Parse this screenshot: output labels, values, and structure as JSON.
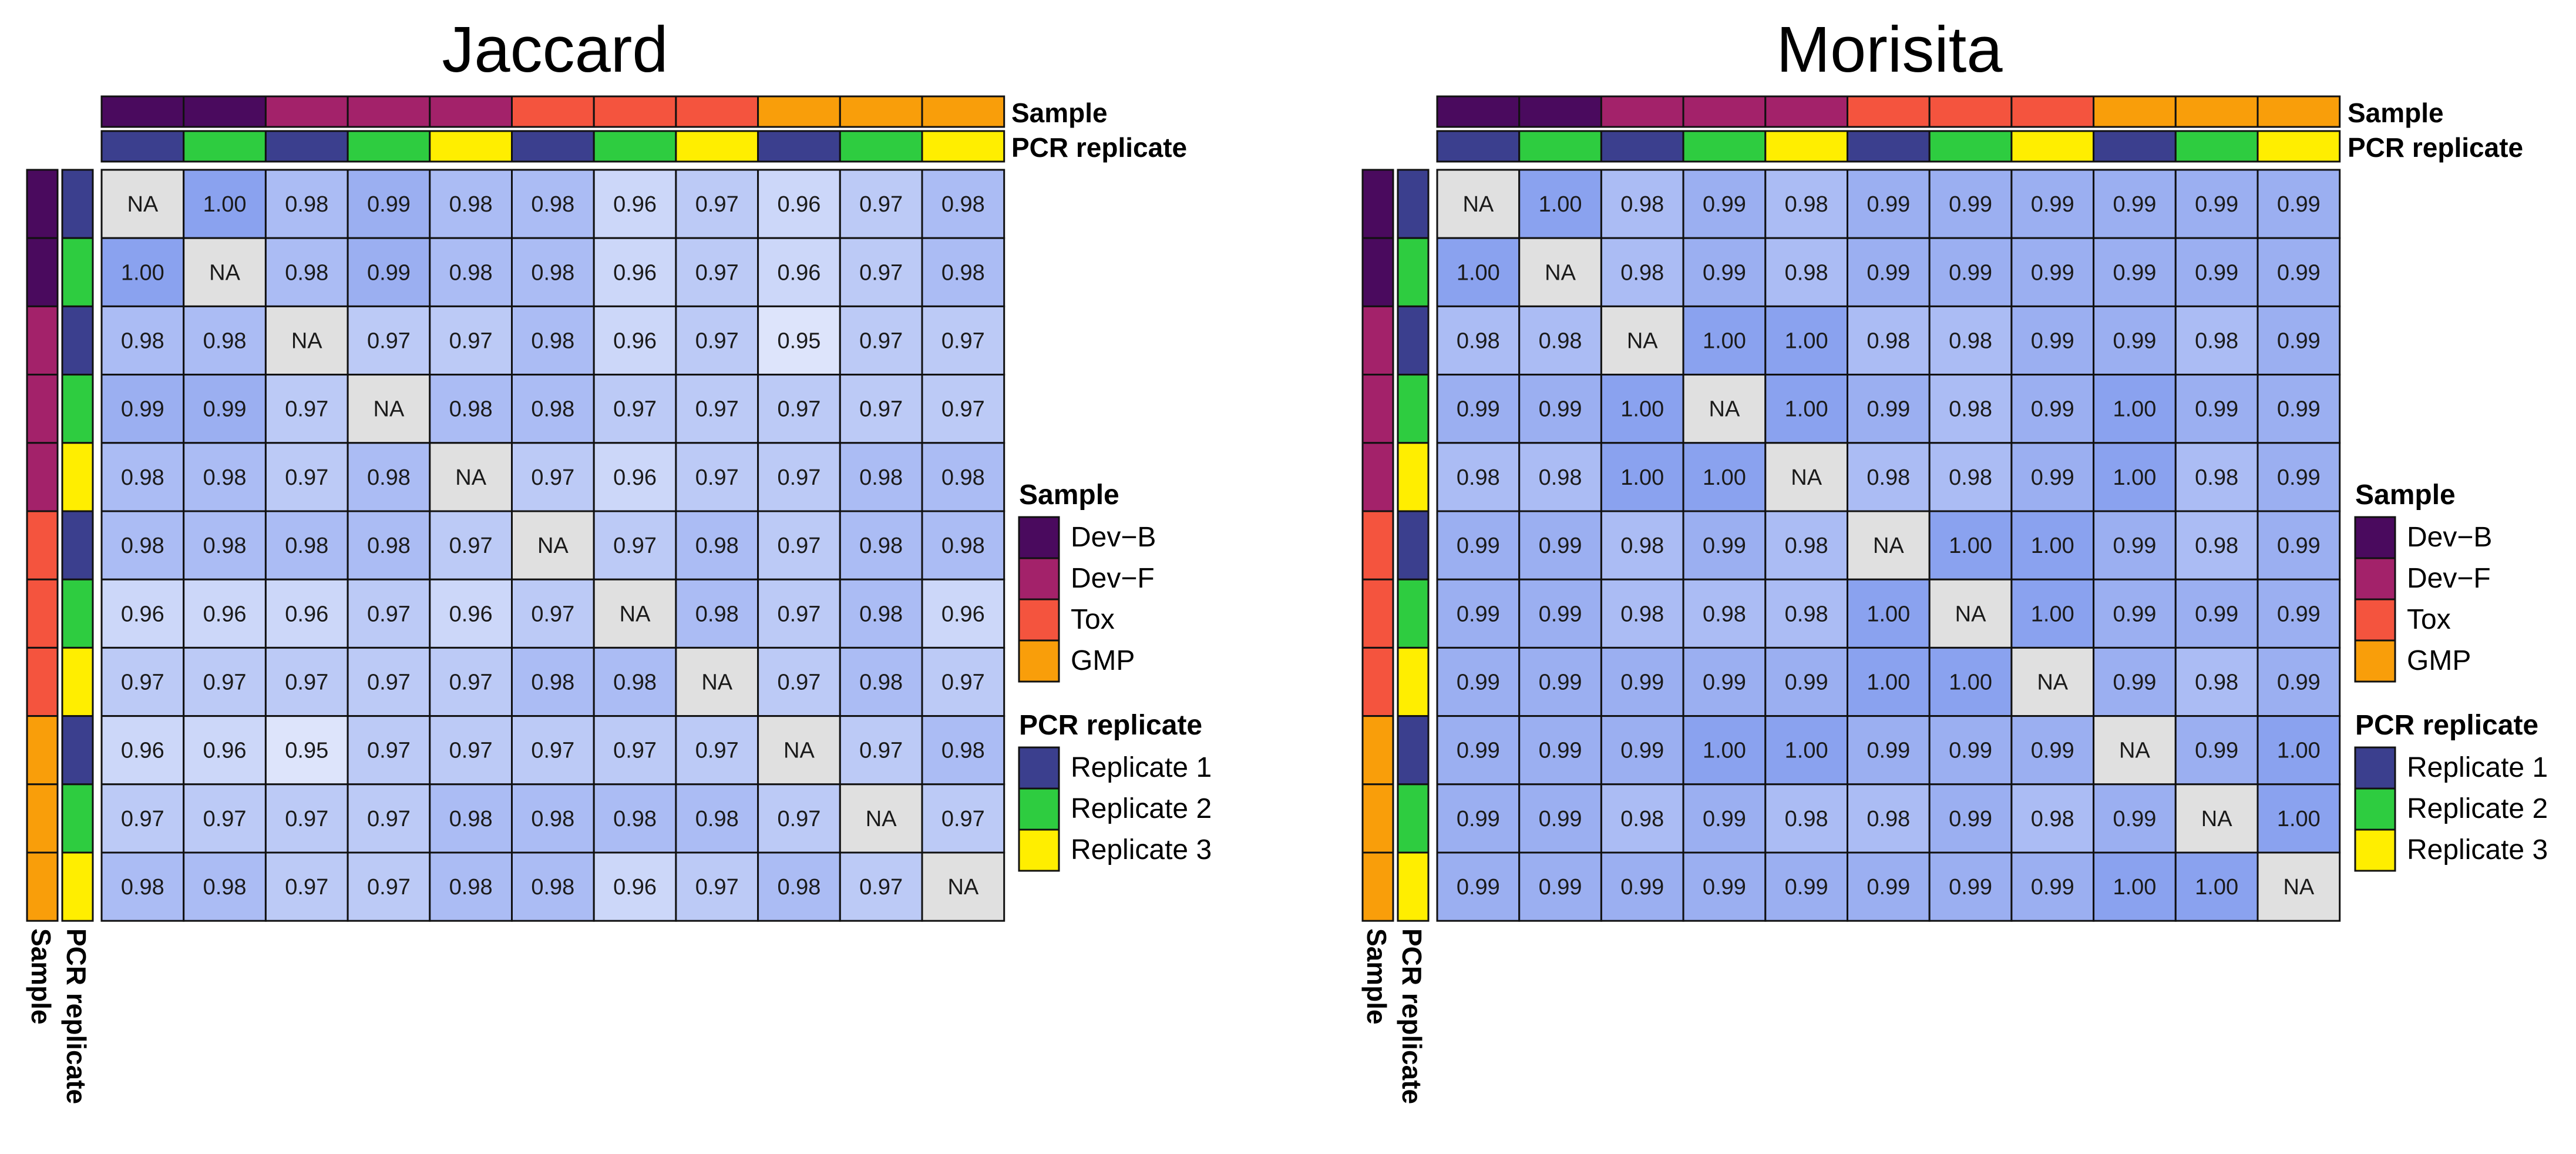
{
  "chart_data": [
    {
      "type": "heatmap",
      "title": "Jaccard",
      "top_annotation_labels": {
        "sample": "Sample",
        "pcr": "PCR replicate"
      },
      "left_annotation_labels": {
        "sample": "Sample",
        "pcr": "PCR replicate"
      },
      "row_sample": [
        "Dev-B",
        "Dev-B",
        "Dev-F",
        "Dev-F",
        "Dev-F",
        "Tox",
        "Tox",
        "Tox",
        "GMP",
        "GMP",
        "GMP"
      ],
      "row_replicate": [
        "Replicate 1",
        "Replicate 2",
        "Replicate 1",
        "Replicate 2",
        "Replicate 3",
        "Replicate 1",
        "Replicate 2",
        "Replicate 3",
        "Replicate 1",
        "Replicate 2",
        "Replicate 3"
      ],
      "value_range": [
        0.95,
        1.0
      ],
      "na_label": "NA",
      "values": [
        [
          null,
          1.0,
          0.98,
          0.99,
          0.98,
          0.98,
          0.96,
          0.97,
          0.96,
          0.97,
          0.98
        ],
        [
          1.0,
          null,
          0.98,
          0.99,
          0.98,
          0.98,
          0.96,
          0.97,
          0.96,
          0.97,
          0.98
        ],
        [
          0.98,
          0.98,
          null,
          0.97,
          0.97,
          0.98,
          0.96,
          0.97,
          0.95,
          0.97,
          0.97
        ],
        [
          0.99,
          0.99,
          0.97,
          null,
          0.98,
          0.98,
          0.97,
          0.97,
          0.97,
          0.97,
          0.97
        ],
        [
          0.98,
          0.98,
          0.97,
          0.98,
          null,
          0.97,
          0.96,
          0.97,
          0.97,
          0.98,
          0.98
        ],
        [
          0.98,
          0.98,
          0.98,
          0.98,
          0.97,
          null,
          0.97,
          0.98,
          0.97,
          0.98,
          0.98
        ],
        [
          0.96,
          0.96,
          0.96,
          0.97,
          0.96,
          0.97,
          null,
          0.98,
          0.97,
          0.98,
          0.96
        ],
        [
          0.97,
          0.97,
          0.97,
          0.97,
          0.97,
          0.98,
          0.98,
          null,
          0.97,
          0.98,
          0.97
        ],
        [
          0.96,
          0.96,
          0.95,
          0.97,
          0.97,
          0.97,
          0.97,
          0.97,
          null,
          0.97,
          0.98
        ],
        [
          0.97,
          0.97,
          0.97,
          0.97,
          0.98,
          0.98,
          0.98,
          0.98,
          0.97,
          null,
          0.97
        ],
        [
          0.98,
          0.98,
          0.97,
          0.97,
          0.98,
          0.98,
          0.96,
          0.97,
          0.98,
          0.97,
          null
        ]
      ]
    },
    {
      "type": "heatmap",
      "title": "Morisita",
      "top_annotation_labels": {
        "sample": "Sample",
        "pcr": "PCR replicate"
      },
      "left_annotation_labels": {
        "sample": "Sample",
        "pcr": "PCR replicate"
      },
      "row_sample": [
        "Dev-B",
        "Dev-B",
        "Dev-F",
        "Dev-F",
        "Dev-F",
        "Tox",
        "Tox",
        "Tox",
        "GMP",
        "GMP",
        "GMP"
      ],
      "row_replicate": [
        "Replicate 1",
        "Replicate 2",
        "Replicate 1",
        "Replicate 2",
        "Replicate 3",
        "Replicate 1",
        "Replicate 2",
        "Replicate 3",
        "Replicate 1",
        "Replicate 2",
        "Replicate 3"
      ],
      "value_range": [
        0.95,
        1.0
      ],
      "na_label": "NA",
      "values": [
        [
          null,
          1.0,
          0.98,
          0.99,
          0.98,
          0.99,
          0.99,
          0.99,
          0.99,
          0.99,
          0.99
        ],
        [
          1.0,
          null,
          0.98,
          0.99,
          0.98,
          0.99,
          0.99,
          0.99,
          0.99,
          0.99,
          0.99
        ],
        [
          0.98,
          0.98,
          null,
          1.0,
          1.0,
          0.98,
          0.98,
          0.99,
          0.99,
          0.98,
          0.99
        ],
        [
          0.99,
          0.99,
          1.0,
          null,
          1.0,
          0.99,
          0.98,
          0.99,
          1.0,
          0.99,
          0.99
        ],
        [
          0.98,
          0.98,
          1.0,
          1.0,
          null,
          0.98,
          0.98,
          0.99,
          1.0,
          0.98,
          0.99
        ],
        [
          0.99,
          0.99,
          0.98,
          0.99,
          0.98,
          null,
          1.0,
          1.0,
          0.99,
          0.98,
          0.99
        ],
        [
          0.99,
          0.99,
          0.98,
          0.98,
          0.98,
          1.0,
          null,
          1.0,
          0.99,
          0.99,
          0.99
        ],
        [
          0.99,
          0.99,
          0.99,
          0.99,
          0.99,
          1.0,
          1.0,
          null,
          0.99,
          0.98,
          0.99
        ],
        [
          0.99,
          0.99,
          0.99,
          1.0,
          1.0,
          0.99,
          0.99,
          0.99,
          null,
          0.99,
          1.0
        ],
        [
          0.99,
          0.99,
          0.98,
          0.99,
          0.98,
          0.98,
          0.99,
          0.98,
          0.99,
          null,
          1.0
        ],
        [
          0.99,
          0.99,
          0.99,
          0.99,
          0.99,
          0.99,
          0.99,
          0.99,
          1.0,
          1.0,
          null
        ]
      ]
    }
  ],
  "legend": {
    "sample_title": "Sample",
    "sample_items": [
      {
        "label": "Dev−B",
        "color": "#4a0a5e"
      },
      {
        "label": "Dev−F",
        "color": "#a3226a"
      },
      {
        "label": "Tox",
        "color": "#f4543e"
      },
      {
        "label": "GMP",
        "color": "#f99e0a"
      }
    ],
    "pcr_title": "PCR replicate",
    "pcr_items": [
      {
        "label": "Replicate 1",
        "color": "#3b3f8e"
      },
      {
        "label": "Replicate 2",
        "color": "#2ecc40"
      },
      {
        "label": "Replicate 3",
        "color": "#ffee00"
      }
    ]
  },
  "colors": {
    "na_cell": "#e0e0e0",
    "scale_low": "#dde4fb",
    "scale_high": "#8aa2ef",
    "sample": {
      "Dev-B": "#4a0a5e",
      "Dev-F": "#a3226a",
      "Tox": "#f4543e",
      "GMP": "#f99e0a"
    },
    "replicate": {
      "Replicate 1": "#3b3f8e",
      "Replicate 2": "#2ecc40",
      "Replicate 3": "#ffee00"
    }
  }
}
